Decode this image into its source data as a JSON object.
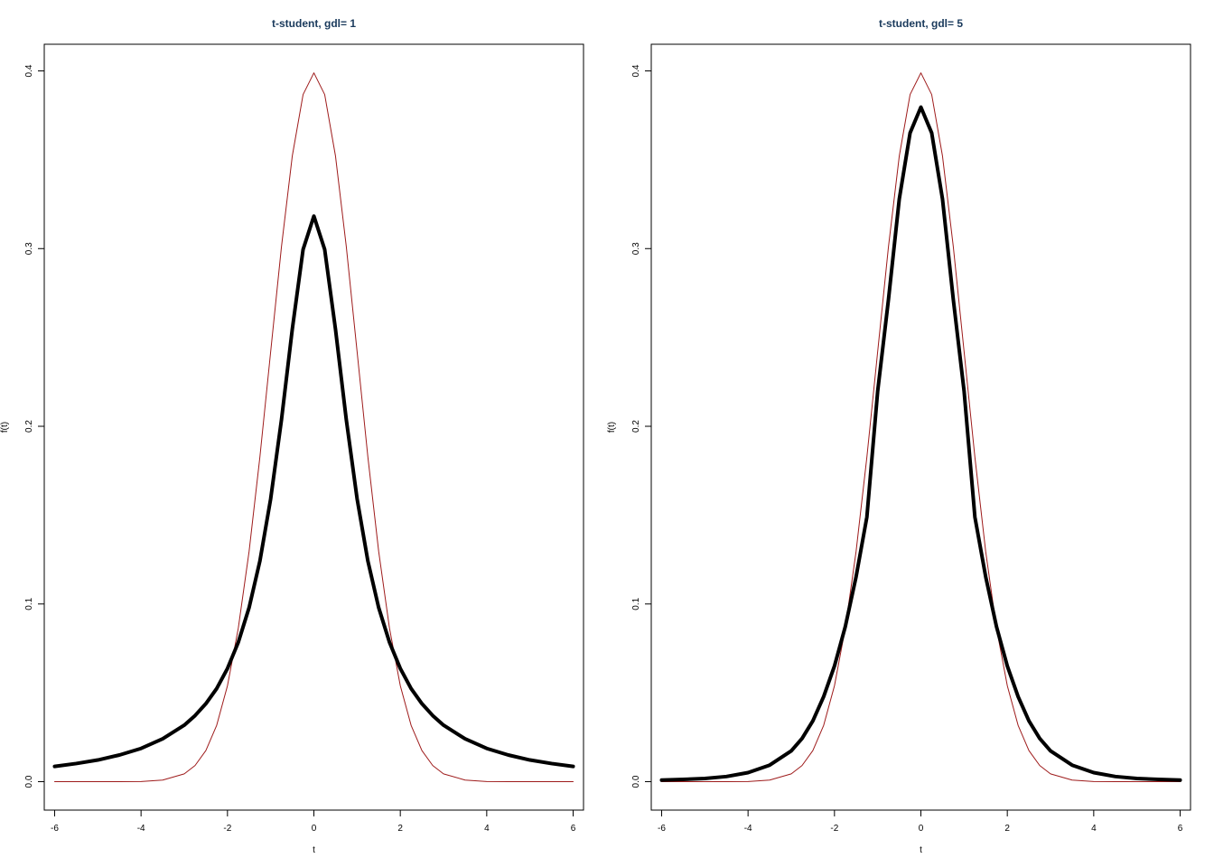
{
  "chart_data": [
    {
      "type": "line",
      "title": "t-student, gdl= 1",
      "xlabel": "t",
      "ylabel": "f(t)",
      "xlim": [
        -6.24,
        6.24
      ],
      "ylim": [
        -0.016,
        0.415
      ],
      "x_ticks": [
        "-6",
        "-4",
        "-2",
        "0",
        "2",
        "4",
        "6"
      ],
      "y_ticks": [
        "0.0",
        "0.1",
        "0.2",
        "0.3",
        "0.4"
      ],
      "grid": false,
      "legend": "none",
      "series": [
        {
          "color": "#9e1b1b",
          "width": 1,
          "x": [
            -6,
            -5.5,
            -5,
            -4.5,
            -4,
            -3.5,
            -3,
            -2.75,
            -2.5,
            -2.25,
            -2,
            -1.75,
            -1.5,
            -1.25,
            -1,
            -0.75,
            -0.5,
            -0.25,
            0,
            0.25,
            0.5,
            0.75,
            1,
            1.25,
            1.5,
            1.75,
            2,
            2.25,
            2.5,
            2.75,
            3,
            3.5,
            4,
            4.5,
            5,
            5.5,
            6
          ],
          "y": [
            0.0,
            0.0,
            0.0,
            0.0,
            0.0001,
            0.0009,
            0.0044,
            0.0091,
            0.0175,
            0.0317,
            0.054,
            0.0863,
            0.1295,
            0.1826,
            0.242,
            0.3011,
            0.3521,
            0.3867,
            0.3989,
            0.3867,
            0.3521,
            0.3011,
            0.242,
            0.1826,
            0.1295,
            0.0863,
            0.054,
            0.0317,
            0.0175,
            0.0091,
            0.0044,
            0.0009,
            0.0001,
            0.0,
            0.0,
            0.0,
            0.0
          ]
        },
        {
          "color": "#000000",
          "width": 4,
          "x": [
            -6,
            -5.5,
            -5,
            -4.5,
            -4,
            -3.5,
            -3,
            -2.75,
            -2.5,
            -2.25,
            -2,
            -1.75,
            -1.5,
            -1.25,
            -1,
            -0.75,
            -0.5,
            -0.25,
            0,
            0.25,
            0.5,
            0.75,
            1,
            1.25,
            1.5,
            1.75,
            2,
            2.25,
            2.5,
            2.75,
            3,
            3.5,
            4,
            4.5,
            5,
            5.5,
            6
          ],
          "y": [
            0.0086,
            0.0102,
            0.0122,
            0.015,
            0.0187,
            0.0241,
            0.0318,
            0.0372,
            0.0439,
            0.0524,
            0.0637,
            0.0784,
            0.0979,
            0.1241,
            0.1592,
            0.2037,
            0.2546,
            0.2995,
            0.3183,
            0.2995,
            0.2546,
            0.2037,
            0.1592,
            0.1241,
            0.0979,
            0.0784,
            0.0637,
            0.0524,
            0.0439,
            0.0372,
            0.0318,
            0.0241,
            0.0187,
            0.015,
            0.0122,
            0.0102,
            0.0086
          ]
        }
      ]
    },
    {
      "type": "line",
      "title": "t-student, gdl= 5",
      "xlabel": "t",
      "ylabel": "f(t)",
      "xlim": [
        -6.24,
        6.24
      ],
      "ylim": [
        -0.016,
        0.415
      ],
      "x_ticks": [
        "-6",
        "-4",
        "-2",
        "0",
        "2",
        "4",
        "6"
      ],
      "y_ticks": [
        "0.0",
        "0.1",
        "0.2",
        "0.3",
        "0.4"
      ],
      "grid": false,
      "legend": "none",
      "series": [
        {
          "color": "#9e1b1b",
          "width": 1,
          "x": [
            -6,
            -5.5,
            -5,
            -4.5,
            -4,
            -3.5,
            -3,
            -2.75,
            -2.5,
            -2.25,
            -2,
            -1.75,
            -1.5,
            -1.25,
            -1,
            -0.75,
            -0.5,
            -0.25,
            0,
            0.25,
            0.5,
            0.75,
            1,
            1.25,
            1.5,
            1.75,
            2,
            2.25,
            2.5,
            2.75,
            3,
            3.5,
            4,
            4.5,
            5,
            5.5,
            6
          ],
          "y": [
            0.0,
            0.0,
            0.0,
            0.0,
            0.0001,
            0.0009,
            0.0044,
            0.0091,
            0.0175,
            0.0317,
            0.054,
            0.0863,
            0.1295,
            0.1826,
            0.242,
            0.3011,
            0.3521,
            0.3867,
            0.3989,
            0.3867,
            0.3521,
            0.3011,
            0.242,
            0.1826,
            0.1295,
            0.0863,
            0.054,
            0.0317,
            0.0175,
            0.0091,
            0.0044,
            0.0009,
            0.0001,
            0.0,
            0.0,
            0.0,
            0.0
          ]
        },
        {
          "color": "#000000",
          "width": 4,
          "x": [
            -6,
            -5.5,
            -5,
            -4.5,
            -4,
            -3.5,
            -3,
            -2.75,
            -2.5,
            -2.25,
            -2,
            -1.75,
            -1.5,
            -1.25,
            -1,
            -0.75,
            -0.5,
            -0.25,
            0,
            0.25,
            0.5,
            0.75,
            1,
            1.25,
            1.5,
            1.75,
            2,
            2.25,
            2.5,
            2.75,
            3,
            3.5,
            4,
            4.5,
            5,
            5.5,
            6
          ],
          "y": [
            0.0009,
            0.0013,
            0.0018,
            0.0029,
            0.0051,
            0.0093,
            0.0173,
            0.0243,
            0.0342,
            0.0479,
            0.0651,
            0.0872,
            0.1153,
            0.1489,
            0.2197,
            0.2714,
            0.3279,
            0.3651,
            0.3796,
            0.3651,
            0.3279,
            0.2714,
            0.2197,
            0.1489,
            0.1153,
            0.0872,
            0.0651,
            0.0479,
            0.0342,
            0.0243,
            0.0173,
            0.0093,
            0.0051,
            0.0029,
            0.0018,
            0.0013,
            0.0009
          ]
        }
      ]
    }
  ]
}
